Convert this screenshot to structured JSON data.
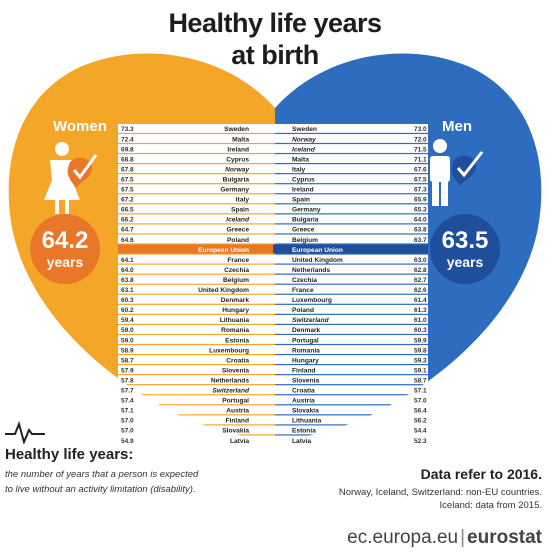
{
  "header": {
    "title_line1": "Healthy life years",
    "title_line2": "at birth"
  },
  "women": {
    "label": "Women",
    "value": "64.2",
    "unit": "years",
    "color": "#f4a629",
    "circle_color": "#e8772a"
  },
  "men": {
    "label": "Men",
    "value": "63.5",
    "unit": "years",
    "color": "#2e6cc0",
    "circle_color": "#1f4f9c"
  },
  "eu_label": "European Union",
  "legend": {
    "title": "Healthy life years:",
    "description": "the number of years that a person is expected to live without an activity limitation (disability)."
  },
  "notes": {
    "refer": "Data refer to 2016.",
    "line1": "Norway, Iceland, Switzerland: non-EU countries.",
    "line2": "Iceland: data from 2015."
  },
  "footer": {
    "url": "ec.europa.eu",
    "brand": "eurostat"
  },
  "chart_data": [
    {
      "type": "bar",
      "series_name": "Women",
      "categories": [
        "Sweden",
        "Malta",
        "Ireland",
        "Cyprus",
        "Norway",
        "Bulgaria",
        "Germany",
        "Italy",
        "Spain",
        "Iceland",
        "Greece",
        "Poland",
        "European Union",
        "France",
        "Czechia",
        "Belgium",
        "United Kingdom",
        "Denmark",
        "Hungary",
        "Lithuania",
        "Romania",
        "Estonia",
        "Luxembourg",
        "Croatia",
        "Slovenia",
        "Netherlands",
        "Switzerland",
        "Portugal",
        "Austria",
        "Finland",
        "Slovakia",
        "Latvia"
      ],
      "values": [
        73.3,
        72.4,
        69.8,
        68.8,
        67.8,
        67.5,
        67.5,
        67.2,
        66.5,
        66.2,
        64.7,
        64.6,
        64.2,
        64.1,
        64.0,
        63.8,
        63.1,
        60.3,
        60.2,
        59.4,
        59.0,
        59.0,
        58.9,
        58.7,
        57.9,
        57.8,
        57.7,
        57.4,
        57.1,
        57.0,
        57.0,
        54.9
      ],
      "italic_categories": [
        "Norway",
        "Iceland",
        "Switzerland"
      ]
    },
    {
      "type": "bar",
      "series_name": "Men",
      "categories": [
        "Sweden",
        "Norway",
        "Iceland",
        "Malta",
        "Italy",
        "Cyprus",
        "Ireland",
        "Spain",
        "Germany",
        "Bulgaria",
        "Greece",
        "Belgium",
        "European Union",
        "United Kingdom",
        "Netherlands",
        "Czechia",
        "France",
        "Luxembourg",
        "Poland",
        "Switzerland",
        "Denmark",
        "Portugal",
        "Romania",
        "Hungary",
        "Finland",
        "Slovenia",
        "Croatia",
        "Austria",
        "Slovakia",
        "Lithuania",
        "Estonia",
        "Latvia"
      ],
      "values": [
        73.0,
        72.0,
        71.5,
        71.1,
        67.6,
        67.5,
        67.3,
        65.9,
        65.3,
        64.0,
        63.8,
        63.7,
        63.5,
        63.0,
        62.8,
        62.7,
        62.6,
        61.4,
        61.3,
        61.0,
        60.3,
        59.9,
        59.8,
        59.3,
        59.1,
        58.7,
        57.1,
        57.0,
        56.4,
        56.2,
        54.4,
        52.3
      ],
      "italic_categories": [
        "Norway",
        "Iceland",
        "Switzerland"
      ]
    }
  ]
}
